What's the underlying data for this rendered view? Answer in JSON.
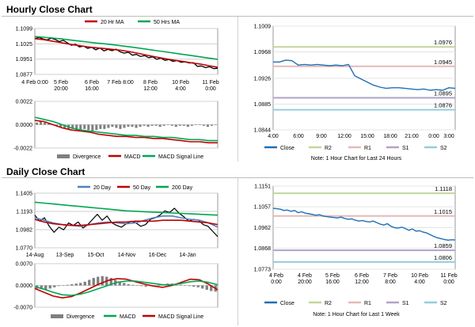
{
  "sections": {
    "hourly_title": "Hourly Close Chart",
    "daily_title": "Daily Close Chart"
  },
  "colors": {
    "close": "#000000",
    "ma_short": "#c00000",
    "ma_mid": "#c00000",
    "ma_long": "#00a651",
    "ma20": "#4f81bd",
    "histogram": "#7f7f7f",
    "macd": "#c00000",
    "signal": "#00a651",
    "right_close": "#1f6fb4",
    "r2": "#c3d69b",
    "r1": "#e6b9b8",
    "s1": "#b3a2c7",
    "s2": "#93cddd"
  },
  "chart_data": [
    {
      "id": "hourly_price",
      "type": "line",
      "legend": [
        "20 Hr MA",
        "50 Hrs MA"
      ],
      "legend_placement": "top",
      "yticks": [
        "1.1099",
        "1.1025",
        "1.0951",
        "1.0877"
      ],
      "ylim": [
        1.0877,
        1.1099
      ],
      "xticks": [
        "4 Feb 0:00",
        "5 Feb\n20:00",
        "6 Feb\n16:00",
        "7 Feb 8:00",
        "8 Feb\n12:00",
        "10 Feb\n4:00",
        "11 Feb\n0:00"
      ],
      "series": [
        {
          "name": "Close",
          "values": [
            1.105,
            1.1056,
            1.1049,
            1.1044,
            1.1052,
            1.1046,
            1.1036,
            1.1042,
            1.103,
            1.1018,
            1.1023,
            1.101,
            1.1014,
            1.1003,
            1.1008,
            1.0996,
            1.1005,
            1.0991,
            1.0998,
            1.0992,
            1.0999,
            1.0986,
            1.098,
            1.0984,
            1.097,
            1.0974,
            1.0964,
            1.0968,
            1.0958,
            1.0962,
            1.095,
            1.0956,
            1.0945,
            1.0949,
            1.094,
            1.0944,
            1.0936,
            1.0938,
            1.0932,
            1.0934,
            1.0916,
            1.0918,
            1.091,
            1.0914,
            1.0905,
            1.0907
          ]
        },
        {
          "name": "20 Hr MA",
          "values": [
            1.105,
            1.1045,
            1.1038,
            1.1031,
            1.1023,
            1.1017,
            1.1011,
            1.1006,
            1.1002,
            1.0998,
            1.0993,
            1.0986,
            1.0978,
            1.0969,
            1.0961,
            1.0953,
            1.0946,
            1.094,
            1.0933,
            1.0927,
            1.0919,
            1.0912
          ]
        },
        {
          "name": "50 Hrs MA",
          "values": [
            1.106,
            1.1057,
            1.1053,
            1.1049,
            1.1044,
            1.1039,
            1.1034,
            1.1029,
            1.1025,
            1.102,
            1.1015,
            1.101,
            1.1004,
            1.0998,
            1.0992,
            1.0986,
            1.098,
            1.0974,
            1.0968,
            1.0962,
            1.0956,
            1.095
          ]
        }
      ]
    },
    {
      "id": "hourly_macd",
      "type": "line",
      "legend": [
        "Divergence",
        "MACD",
        "MACD Signal Line"
      ],
      "legend_placement": "bottom",
      "yticks": [
        "0.0022",
        "0.0000",
        "-0.0022"
      ],
      "ylim": [
        -0.0022,
        0.0022
      ],
      "histogram": [
        0.0002,
        0.0003,
        0.0002,
        0.0001,
        0.0,
        -0.0001,
        -0.0002,
        -0.0003,
        -0.0004,
        -0.0004,
        -0.0005,
        -0.0005,
        -0.0004,
        -0.0005,
        -0.0006,
        -0.0005,
        -0.0004,
        -0.0004,
        -0.0003,
        -0.0002,
        -0.0003,
        -0.0004,
        -0.0003,
        -0.0002,
        -0.0002,
        -0.0003,
        -0.0002,
        -0.0001,
        -0.0002,
        -0.0001,
        -0.0001,
        -0.0002,
        -0.0001,
        0.0,
        -0.0001,
        -0.0002,
        -0.0001,
        -0.0001,
        -0.0002,
        -0.0001,
        0.0,
        0.0,
        -0.0001,
        -0.0002,
        -0.0001,
        0.0
      ],
      "series": [
        {
          "name": "MACD",
          "values": [
            0.0004,
            0.0003,
            0.0,
            -0.0003,
            -0.0005,
            -0.0006,
            -0.0007,
            -0.0009,
            -0.001,
            -0.0011,
            -0.0011,
            -0.0012,
            -0.0012,
            -0.0013,
            -0.0013,
            -0.0014,
            -0.0015,
            -0.0016,
            -0.0016,
            -0.0017,
            -0.0017
          ]
        },
        {
          "name": "MACD Signal Line",
          "values": [
            0.0007,
            0.0005,
            0.0003,
            0.0,
            -0.0003,
            -0.0005,
            -0.0006,
            -0.0007,
            -0.0008,
            -0.0009,
            -0.001,
            -0.001,
            -0.0011,
            -0.0011,
            -0.0012,
            -0.0012,
            -0.0013,
            -0.0014,
            -0.0014,
            -0.0015,
            -0.0015
          ]
        }
      ]
    },
    {
      "id": "hourly_pivots",
      "type": "line",
      "yticks": [
        "1.1009",
        "1.0968",
        "1.0926",
        "1.0885",
        "1.0844"
      ],
      "ylim": [
        1.0844,
        1.1009
      ],
      "xticks": [
        "4:00",
        "6:00",
        "9:00",
        "12:00",
        "15:00",
        "18:00",
        "21:00",
        "0:00",
        "3:00"
      ],
      "legend": [
        "Close",
        "R2",
        "R1",
        "S1",
        "S2"
      ],
      "legend_placement": "bottom",
      "levels": {
        "R2": 1.0976,
        "R1": 1.0945,
        "S1": 1.0895,
        "S2": 1.0876
      },
      "level_labels": {
        "R2": "1.0976",
        "R1": "1.0945",
        "S1": "1.0895",
        "S2": "1.0876"
      },
      "series": [
        {
          "name": "Close",
          "values": [
            1.0952,
            1.0952,
            1.0955,
            1.0954,
            1.0947,
            1.0948,
            1.0947,
            1.0948,
            1.0947,
            1.0946,
            1.0947,
            1.0946,
            1.0948,
            1.093,
            1.0925,
            1.092,
            1.0915,
            1.0912,
            1.091,
            1.0911,
            1.0911,
            1.091,
            1.0909,
            1.0908,
            1.0909,
            1.0907,
            1.0908,
            1.0907,
            1.0911,
            1.091
          ]
        }
      ],
      "note": "Note: 1 Hour Chart for Last 24 Hours"
    },
    {
      "id": "daily_price",
      "type": "line",
      "legend": [
        "20 Day",
        "50 Day",
        "200 Day"
      ],
      "legend_placement": "top",
      "yticks": [
        "1.1405",
        "1.1193",
        "1.0982",
        "1.0770"
      ],
      "ylim": [
        1.077,
        1.1405
      ],
      "xticks": [
        "14-Aug",
        "13-Sep",
        "15-Oct",
        "14-Nov",
        "16-Dec",
        "14-Jan"
      ],
      "series": [
        {
          "name": "Close",
          "values": [
            1.115,
            1.108,
            1.112,
            1.102,
            1.095,
            1.101,
            1.098,
            1.106,
            1.103,
            1.107,
            1.1,
            1.104,
            1.11,
            1.116,
            1.109,
            1.114,
            1.106,
            1.103,
            1.101,
            1.105,
            1.108,
            1.106,
            1.102,
            1.104,
            1.11,
            1.112,
            1.115,
            1.12,
            1.118,
            1.123,
            1.117,
            1.113,
            1.108,
            1.11,
            1.109,
            1.104,
            1.102,
            1.096,
            1.09
          ]
        },
        {
          "name": "20 Day",
          "values": [
            1.112,
            1.109,
            1.106,
            1.104,
            1.103,
            1.102,
            1.104,
            1.106,
            1.107,
            1.106,
            1.105,
            1.106,
            1.109,
            1.112,
            1.114,
            1.114,
            1.112,
            1.11,
            1.109,
            1.106,
            1.101
          ]
        },
        {
          "name": "50 Day",
          "values": [
            1.11,
            1.107,
            1.105,
            1.104,
            1.103,
            1.103,
            1.104,
            1.105,
            1.106,
            1.107,
            1.107,
            1.108,
            1.108,
            1.108,
            1.109,
            1.109,
            1.109,
            1.108,
            1.107,
            1.106,
            1.104
          ]
        },
        {
          "name": "200 Day",
          "values": [
            1.13,
            1.129,
            1.128,
            1.127,
            1.126,
            1.125,
            1.124,
            1.123,
            1.122,
            1.121,
            1.12,
            1.1195,
            1.119,
            1.1185,
            1.118,
            1.1175,
            1.117,
            1.1165,
            1.116,
            1.1155,
            1.115
          ]
        }
      ]
    },
    {
      "id": "daily_macd",
      "type": "line",
      "legend": [
        "Divergence",
        "MACD",
        "MACD Signal Line"
      ],
      "legend_placement": "bottom",
      "yticks": [
        "0.0070",
        "0.0000",
        "-0.0070"
      ],
      "ylim": [
        -0.007,
        0.007
      ],
      "histogram": [
        -0.001,
        -0.0012,
        -0.0014,
        -0.001,
        -0.0006,
        -0.0002,
        0.0,
        0.0002,
        0.0004,
        0.0006,
        0.0008,
        0.0012,
        0.0018,
        0.0024,
        0.0028,
        0.003,
        0.0028,
        0.0024,
        0.0018,
        0.0012,
        0.0008,
        0.0004,
        0.0002,
        0.0,
        -0.0002,
        -0.0004,
        -0.0002,
        0.0,
        0.0002,
        0.0004,
        0.0006,
        0.0006,
        0.0004,
        0.0002,
        0.0,
        -0.0002,
        -0.0004,
        -0.0006,
        -0.001,
        -0.0014,
        -0.0018,
        -0.002
      ],
      "series": [
        {
          "name": "MACD",
          "values": [
            -0.001,
            -0.0022,
            -0.0034,
            -0.004,
            -0.0036,
            -0.0024,
            -0.001,
            0.0004,
            0.0016,
            0.0022,
            0.002,
            0.0012,
            0.0004,
            -0.0002,
            -0.0006,
            0.0,
            0.001,
            0.002,
            0.0018,
            0.0004,
            -0.0014
          ]
        },
        {
          "name": "MACD Signal Line",
          "values": [
            -0.0004,
            -0.0012,
            -0.0022,
            -0.003,
            -0.0032,
            -0.0028,
            -0.002,
            -0.001,
            0.0,
            0.001,
            0.0014,
            0.0014,
            0.001,
            0.0006,
            0.0002,
            0.0002,
            0.0006,
            0.0012,
            0.0014,
            0.001,
            0.0002
          ]
        }
      ]
    },
    {
      "id": "daily_pivots",
      "type": "line",
      "yticks": [
        "1.1151",
        "1.1057",
        "1.0962",
        "1.0868",
        "1.0773"
      ],
      "ylim": [
        1.0773,
        1.1151
      ],
      "xticks": [
        "4 Feb\n0:00",
        "4 Feb\n20:00",
        "5 Feb\n16:00",
        "6 Feb\n12:00",
        "7 Feb\n8:00",
        "10 Feb\n4:00",
        "11 Feb\n0:00"
      ],
      "legend": [
        "Close",
        "R2",
        "R1",
        "S1",
        "S2"
      ],
      "legend_placement": "bottom",
      "levels": {
        "R2": 1.1118,
        "R1": 1.1015,
        "S1": 1.0859,
        "S2": 1.0806
      },
      "level_labels": {
        "R2": "1.1118",
        "R1": "1.1015",
        "S1": "1.0859",
        "S2": "1.0806"
      },
      "series": [
        {
          "name": "Close",
          "values": [
            1.105,
            1.1048,
            1.1046,
            1.104,
            1.1042,
            1.1036,
            1.104,
            1.103,
            1.1034,
            1.1028,
            1.1025,
            1.1022,
            1.1018,
            1.1021,
            1.1015,
            1.1012,
            1.101,
            1.1008,
            1.1006,
            1.101,
            1.1004,
            1.1,
            1.1002,
            1.0996,
            1.0992,
            1.0994,
            1.099,
            1.0988,
            1.0992,
            1.0985,
            1.0978,
            1.0974,
            1.098,
            1.0968,
            1.0962,
            1.096,
            1.0964,
            1.0958,
            1.095,
            1.0956,
            1.0946,
            1.0948,
            1.0942,
            1.0938,
            1.093,
            1.0922,
            1.0916,
            1.0912,
            1.0908,
            1.0905,
            1.0907,
            1.0906
          ]
        }
      ],
      "note": "Note: 1 Hour Chart for Last 1 Week"
    }
  ]
}
